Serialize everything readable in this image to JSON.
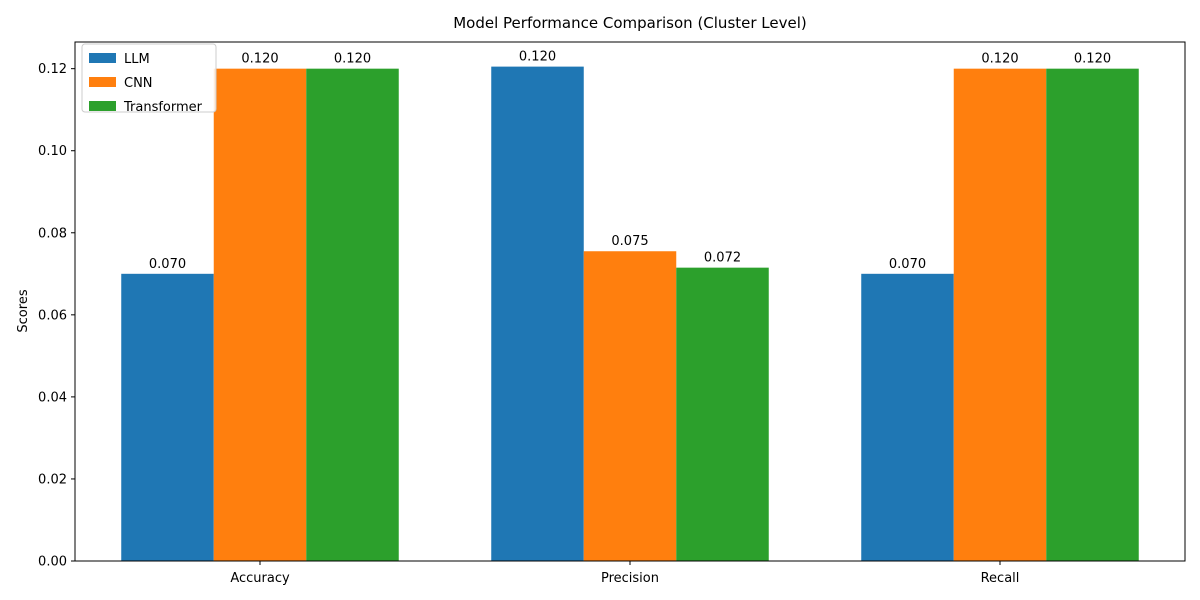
{
  "chart_data": {
    "type": "bar",
    "title": "Model Performance Comparison (Cluster Level)",
    "xlabel": "",
    "ylabel": "Scores",
    "categories": [
      "Accuracy",
      "Precision",
      "Recall"
    ],
    "series": [
      {
        "name": "LLM",
        "color": "#1f77b4",
        "values": [
          0.07,
          0.1205,
          0.07
        ],
        "labels": [
          "0.070",
          "0.120",
          "0.070"
        ]
      },
      {
        "name": "CNN",
        "color": "#ff7f0e",
        "values": [
          0.12,
          0.0755,
          0.12
        ],
        "labels": [
          "0.120",
          "0.075",
          "0.120"
        ]
      },
      {
        "name": "Transformer",
        "color": "#2ca02c",
        "values": [
          0.12,
          0.0715,
          0.12
        ],
        "labels": [
          "0.120",
          "0.072",
          "0.120"
        ]
      }
    ],
    "ylim": [
      0,
      0.1265
    ],
    "yticks": [
      0.0,
      0.02,
      0.04,
      0.06,
      0.08,
      0.1,
      0.12
    ],
    "ytick_labels": [
      "0.00",
      "0.02",
      "0.04",
      "0.06",
      "0.08",
      "0.10",
      "0.12"
    ],
    "grid": false,
    "legend_position": "top-left"
  }
}
